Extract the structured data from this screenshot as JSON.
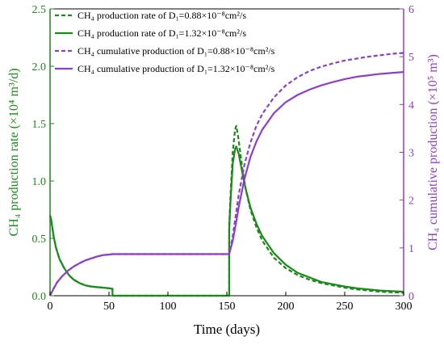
{
  "chart_data": {
    "type": "line",
    "xlabel": "Time (days)",
    "ylabel_left": "CH₄ production rate (×10⁴ m³/d)",
    "ylabel_right": "CH₄ cumulative production (×10⁵ m³)",
    "xlim": [
      0,
      300
    ],
    "ylim_left": [
      0,
      2.5
    ],
    "ylim_right": [
      0,
      6
    ],
    "x_ticks": [
      "0",
      "50",
      "100",
      "150",
      "200",
      "250",
      "300"
    ],
    "y_ticks_left": [
      "0.0",
      "0.5",
      "1.0",
      "1.5",
      "2.0",
      "2.5"
    ],
    "y_ticks_right": [
      "0",
      "1",
      "2",
      "3",
      "4",
      "5",
      "6"
    ],
    "grid": false,
    "legend_position": "top-left",
    "colors": {
      "rate": "#1a8a1a",
      "cumulative": "#8e3fc9"
    },
    "series": [
      {
        "label": "CH₄ production rate of D₁=0.88×10⁻⁸cm²/s",
        "axis": "left",
        "color": "#1a8a1a",
        "dash": true,
        "x": [
          0,
          1,
          3,
          5,
          8,
          12,
          16,
          20,
          25,
          30,
          35,
          40,
          45,
          50,
          53,
          53.01,
          152,
          152.01,
          153,
          155,
          157,
          158,
          160,
          163,
          166,
          170,
          175,
          180,
          190,
          200,
          210,
          220,
          230,
          240,
          250,
          260,
          270,
          280,
          290,
          300
        ],
        "y": [
          0.7,
          0.66,
          0.52,
          0.42,
          0.32,
          0.24,
          0.18,
          0.14,
          0.11,
          0.09,
          0.08,
          0.075,
          0.07,
          0.065,
          0.06,
          0.0,
          0.0,
          0.62,
          0.85,
          1.25,
          1.45,
          1.48,
          1.36,
          1.12,
          0.93,
          0.75,
          0.6,
          0.48,
          0.33,
          0.24,
          0.18,
          0.14,
          0.11,
          0.09,
          0.07,
          0.055,
          0.045,
          0.035,
          0.03,
          0.025
        ]
      },
      {
        "label": "CH₄ production rate of D₁=1.32×10⁻⁸cm²/s",
        "axis": "left",
        "color": "#1a8a1a",
        "dash": false,
        "x": [
          0,
          1,
          3,
          5,
          8,
          12,
          16,
          20,
          25,
          30,
          35,
          40,
          45,
          50,
          53,
          53.01,
          152,
          152.01,
          153,
          155,
          157,
          158,
          160,
          163,
          166,
          170,
          175,
          180,
          190,
          200,
          210,
          220,
          230,
          240,
          250,
          260,
          270,
          280,
          290,
          300
        ],
        "y": [
          0.7,
          0.66,
          0.52,
          0.42,
          0.32,
          0.24,
          0.18,
          0.14,
          0.11,
          0.09,
          0.08,
          0.075,
          0.07,
          0.065,
          0.06,
          0.0,
          0.0,
          0.58,
          0.8,
          1.15,
          1.28,
          1.3,
          1.24,
          1.08,
          0.93,
          0.77,
          0.63,
          0.52,
          0.37,
          0.27,
          0.2,
          0.16,
          0.12,
          0.1,
          0.08,
          0.065,
          0.055,
          0.045,
          0.04,
          0.035
        ]
      },
      {
        "label": "CH₄ cumulative production of D₁=0.88×10⁻⁸cm²/s",
        "axis": "right",
        "color": "#8e3fc9",
        "dash": true,
        "x": [
          0,
          3,
          6,
          10,
          15,
          20,
          25,
          30,
          35,
          40,
          45,
          50,
          53,
          152,
          155,
          158,
          160,
          165,
          170,
          175,
          180,
          190,
          200,
          210,
          220,
          230,
          240,
          250,
          260,
          270,
          280,
          290,
          300
        ],
        "y": [
          0.0,
          0.15,
          0.28,
          0.4,
          0.52,
          0.61,
          0.68,
          0.74,
          0.78,
          0.82,
          0.85,
          0.86,
          0.87,
          0.87,
          1.25,
          1.75,
          2.1,
          2.75,
          3.2,
          3.55,
          3.8,
          4.15,
          4.4,
          4.57,
          4.7,
          4.79,
          4.86,
          4.92,
          4.96,
          5.0,
          5.03,
          5.06,
          5.08
        ]
      },
      {
        "label": "CH₄ cumulative production of D₁=1.32×10⁻⁸cm²/s",
        "axis": "right",
        "color": "#8e3fc9",
        "dash": false,
        "x": [
          0,
          3,
          6,
          10,
          15,
          20,
          25,
          30,
          35,
          40,
          45,
          50,
          53,
          152,
          155,
          158,
          160,
          165,
          170,
          175,
          180,
          190,
          200,
          210,
          220,
          230,
          240,
          250,
          260,
          270,
          280,
          290,
          300
        ],
        "y": [
          0.0,
          0.15,
          0.28,
          0.4,
          0.52,
          0.61,
          0.68,
          0.74,
          0.78,
          0.82,
          0.85,
          0.86,
          0.87,
          0.87,
          1.15,
          1.55,
          1.85,
          2.45,
          2.9,
          3.22,
          3.47,
          3.82,
          4.05,
          4.2,
          4.31,
          4.4,
          4.47,
          4.53,
          4.58,
          4.61,
          4.64,
          4.66,
          4.68
        ]
      }
    ]
  }
}
